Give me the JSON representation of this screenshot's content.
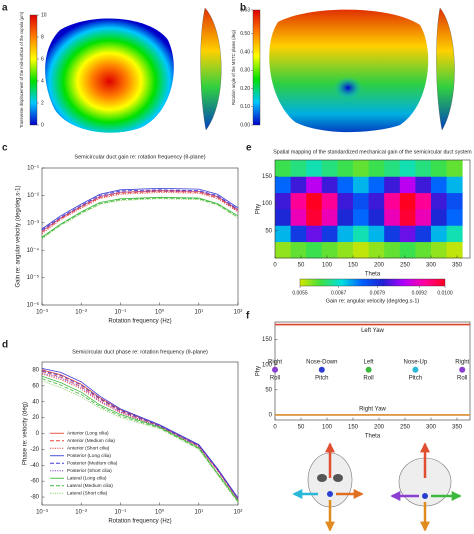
{
  "panel_labels": [
    "a",
    "b",
    "c",
    "d",
    "e",
    "f"
  ],
  "chart_data": [
    {
      "type": "surface",
      "colorbar": {
        "label": "Transverse displacement of the mid-surface of the cupula (μm)",
        "lim": [
          0,
          10
        ],
        "ticks": [
          0,
          2,
          4,
          6,
          8,
          10
        ],
        "colormap": [
          "#0000c8",
          "#00c8ff",
          "#00e000",
          "#ffff00",
          "#ff8000",
          "#e00000"
        ]
      }
    },
    {
      "type": "surface",
      "colorbar": {
        "label": "Rotation angle of the MSTC plates (deg)",
        "lim": [
          0,
          0.63
        ],
        "ticks": [
          {
            "value": 0,
            "label": "0.00"
          },
          {
            "value": 0.1,
            "label": "0.10"
          },
          {
            "value": 0.2,
            "label": "0.20"
          },
          {
            "value": 0.3,
            "label": "0.30"
          },
          {
            "value": 0.4,
            "label": "0.40"
          },
          {
            "value": 0.5,
            "label": "0.50"
          },
          0.63
        ],
        "colormap": [
          "#0000c8",
          "#00c8ff",
          "#00e000",
          "#ffff00",
          "#ff8000",
          "#e00000"
        ]
      }
    },
    {
      "type": "line",
      "title": "Semicircular duct gain re: rotation frequency (θ-plane)",
      "xlabel": "Rotation frequency (Hz)",
      "ylabel": "Gain re: angular velocity (deg/deg.s-1)",
      "xscale": "log",
      "yscale": "log",
      "xlim": [
        0.001,
        100
      ],
      "ylim": [
        1e-06,
        0.1
      ],
      "xticks": [
        {
          "value": 0.001,
          "label": "10⁻³"
        },
        {
          "value": 0.01,
          "label": "10⁻²"
        },
        {
          "value": 0.1,
          "label": "10⁻¹"
        },
        {
          "value": 1,
          "label": "10⁰"
        },
        {
          "value": 10,
          "label": "10¹"
        },
        {
          "value": 100,
          "label": "10²"
        }
      ],
      "yticks": [
        {
          "value": 1e-06,
          "label": "10⁻⁶"
        },
        {
          "value": 1e-05,
          "label": "10⁻⁵"
        },
        {
          "value": 0.0001,
          "label": "10⁻⁴"
        },
        {
          "value": 0.001,
          "label": "10⁻³"
        },
        {
          "value": 0.01,
          "label": "10⁻²"
        },
        {
          "value": 0.1,
          "label": "10⁻¹"
        }
      ],
      "x": [
        0.001,
        0.003,
        0.01,
        0.03,
        0.1,
        1,
        10,
        30,
        100
      ],
      "series": [
        {
          "color": "#e8433a",
          "dash": "solid",
          "values": [
            0.0005,
            0.0015,
            0.004,
            0.009,
            0.013,
            0.015,
            0.014,
            0.009,
            0.003
          ]
        },
        {
          "color": "#e8433a",
          "dash": "dashed",
          "values": [
            0.00045,
            0.0014,
            0.0037,
            0.0083,
            0.012,
            0.014,
            0.013,
            0.0083,
            0.0027
          ]
        },
        {
          "color": "#e8433a",
          "dash": "dotted",
          "values": [
            0.0004,
            0.0013,
            0.0034,
            0.0077,
            0.011,
            0.0128,
            0.012,
            0.0077,
            0.0025
          ]
        },
        {
          "color": "#3b3bd6",
          "dash": "solid",
          "values": [
            0.0006,
            0.0018,
            0.0048,
            0.011,
            0.016,
            0.018,
            0.017,
            0.011,
            0.0035
          ]
        },
        {
          "color": "#3b3bd6",
          "dash": "dashed",
          "values": [
            0.00055,
            0.0016,
            0.0043,
            0.01,
            0.0145,
            0.016,
            0.015,
            0.0098,
            0.0031
          ]
        },
        {
          "color": "#8a3fd0",
          "dash": "dotted",
          "values": [
            0.0005,
            0.0015,
            0.004,
            0.009,
            0.013,
            0.0145,
            0.014,
            0.009,
            0.0028
          ]
        },
        {
          "color": "#3fb83f",
          "dash": "solid",
          "values": [
            0.0003,
            0.0009,
            0.0025,
            0.0055,
            0.0075,
            0.0085,
            0.008,
            0.005,
            0.0018
          ]
        },
        {
          "color": "#3fb83f",
          "dash": "dashed",
          "values": [
            0.00028,
            0.00085,
            0.0023,
            0.005,
            0.007,
            0.008,
            0.0075,
            0.0047,
            0.0016
          ]
        },
        {
          "color": "#8fd05f",
          "dash": "dotted",
          "values": [
            0.00026,
            0.0008,
            0.0021,
            0.0047,
            0.0065,
            0.0075,
            0.007,
            0.0044,
            0.0015
          ]
        }
      ]
    },
    {
      "type": "line",
      "title": "Semicircular duct phase re: rotation frequency (θ-plane)",
      "xlabel": "Rotation frequency (Hz)",
      "ylabel": "Phase re: velocity (deg)",
      "xscale": "log",
      "xlim": [
        0.001,
        100
      ],
      "ylim": [
        -90,
        90
      ],
      "xticks": [
        {
          "value": 0.001,
          "label": "10⁻³"
        },
        {
          "value": 0.01,
          "label": "10⁻²"
        },
        {
          "value": 0.1,
          "label": "10⁻¹"
        },
        {
          "value": 1,
          "label": "10⁰"
        },
        {
          "value": 10,
          "label": "10¹"
        },
        {
          "value": 100,
          "label": "10²"
        }
      ],
      "yticks": [
        -80,
        -60,
        -40,
        -20,
        0,
        20,
        40,
        60,
        80
      ],
      "legend": "lower left",
      "x": [
        0.001,
        0.003,
        0.01,
        0.03,
        0.1,
        1,
        10,
        30,
        100
      ],
      "series": [
        {
          "name": "Anterior (Long cilia)",
          "color": "#e8433a",
          "dash": "solid",
          "values": [
            80,
            74,
            62,
            45,
            30,
            10,
            -15,
            -45,
            -82
          ]
        },
        {
          "name": "Anterior (Medium cilia)",
          "color": "#e8433a",
          "dash": "dashed",
          "values": [
            78,
            71,
            59,
            43,
            28,
            9,
            -16,
            -46,
            -83
          ]
        },
        {
          "name": "Anterior (Short cilia)",
          "color": "#e8433a",
          "dash": "dotted",
          "values": [
            75,
            68,
            56,
            40,
            26,
            8,
            -17,
            -47,
            -84
          ]
        },
        {
          "name": "Posterior (Long cilia)",
          "color": "#3b3bd6",
          "dash": "solid",
          "values": [
            82,
            77,
            65,
            47,
            31,
            11,
            -14,
            -44,
            -81
          ]
        },
        {
          "name": "Posterior (Medium cilia)",
          "color": "#3b3bd6",
          "dash": "dashed",
          "values": [
            79,
            73,
            61,
            44,
            29,
            10,
            -15,
            -45,
            -82
          ]
        },
        {
          "name": "Posterior (Short cilia)",
          "color": "#8a3fd0",
          "dash": "dotted",
          "values": [
            76,
            70,
            58,
            41,
            27,
            9,
            -16,
            -46,
            -83
          ]
        },
        {
          "name": "Lateral (Long cilia)",
          "color": "#3fb83f",
          "dash": "solid",
          "values": [
            72,
            64,
            52,
            36,
            24,
            8,
            -18,
            -50,
            -85
          ]
        },
        {
          "name": "Lateral (Medium cilia)",
          "color": "#3fb83f",
          "dash": "dashed",
          "values": [
            69,
            61,
            49,
            34,
            22,
            7,
            -19,
            -51,
            -86
          ]
        },
        {
          "name": "Lateral (Short cilia)",
          "color": "#8fd05f",
          "dash": "dotted",
          "values": [
            66,
            58,
            46,
            32,
            20,
            6,
            -20,
            -52,
            -87
          ]
        }
      ]
    },
    {
      "type": "heatmap",
      "title": "Spatial mapping of the standardized mechanical gain of the semicircular duct system",
      "xlabel": "Theta",
      "ylabel": "Phy",
      "xlim": [
        0,
        375
      ],
      "ylim": [
        0,
        180
      ],
      "xticks": [
        0,
        50,
        100,
        150,
        200,
        250,
        300,
        350
      ],
      "yticks": [
        50,
        100,
        150
      ],
      "x": [
        15,
        45,
        75,
        105,
        135,
        165,
        195,
        225,
        255,
        285,
        315,
        345
      ],
      "y": [
        15,
        45,
        75,
        105,
        135,
        165
      ],
      "z": [
        [
          0.0058,
          0.006,
          0.0062,
          0.006,
          0.0058,
          0.0056,
          0.0058,
          0.006,
          0.0062,
          0.006,
          0.0058,
          0.0056
        ],
        [
          0.007,
          0.0078,
          0.0084,
          0.0078,
          0.007,
          0.0066,
          0.007,
          0.0078,
          0.0084,
          0.0078,
          0.007,
          0.0066
        ],
        [
          0.008,
          0.0092,
          0.0099,
          0.0092,
          0.008,
          0.0074,
          0.008,
          0.0092,
          0.0099,
          0.0092,
          0.008,
          0.0074
        ],
        [
          0.0082,
          0.0094,
          0.01,
          0.0094,
          0.0082,
          0.0076,
          0.0082,
          0.0094,
          0.01,
          0.0094,
          0.0082,
          0.0076
        ],
        [
          0.0074,
          0.0082,
          0.0088,
          0.0082,
          0.0074,
          0.007,
          0.0074,
          0.0082,
          0.0088,
          0.0082,
          0.0074,
          0.007
        ],
        [
          0.0062,
          0.0064,
          0.0066,
          0.0064,
          0.0062,
          0.006,
          0.0062,
          0.0064,
          0.0066,
          0.0064,
          0.0062,
          0.006
        ]
      ],
      "colorbar": {
        "label": "Gain re: angular velocity (deg/deg.s-1)",
        "lim": [
          0.0055,
          0.01
        ],
        "ticks": [
          0.0055,
          0.0067,
          0.0079,
          0.0092,
          {
            "value": 0.01,
            "label": "0.0100"
          }
        ],
        "colormap": [
          "#d8e600",
          "#40e040",
          "#00e0e0",
          "#0060ff",
          "#2020d0",
          "#b000ff",
          "#ff00a0",
          "#ff0020"
        ]
      }
    },
    {
      "type": "scatter",
      "xlabel": "Theta",
      "ylabel": "Phy",
      "xlim": [
        0,
        375
      ],
      "ylim": [
        -10,
        185
      ],
      "xticks": [
        0,
        50,
        100,
        150,
        200,
        250,
        300,
        350
      ],
      "yticks": [
        0,
        50,
        100,
        150
      ],
      "hlines": [
        {
          "name": "Left Yaw",
          "y": 180,
          "color": "#d9442e"
        },
        {
          "name": "Right Yaw",
          "y": 0,
          "color": "#d98a2e"
        }
      ],
      "points": [
        {
          "x": 0,
          "y": 90,
          "label": [
            "Right",
            "Roll"
          ],
          "color": "#8a3fd0"
        },
        {
          "x": 90,
          "y": 90,
          "label": [
            "Nose-Down",
            "Pitch"
          ],
          "color": "#2a3fd0"
        },
        {
          "x": 180,
          "y": 90,
          "label": [
            "Left",
            "Roll"
          ],
          "color": "#3fb83f"
        },
        {
          "x": 270,
          "y": 90,
          "label": [
            "Nose-Up",
            "Pitch"
          ],
          "color": "#2ab8d8"
        },
        {
          "x": 360,
          "y": 90,
          "label": [
            "Right",
            "Roll"
          ],
          "color": "#8a3fd0"
        }
      ]
    }
  ]
}
